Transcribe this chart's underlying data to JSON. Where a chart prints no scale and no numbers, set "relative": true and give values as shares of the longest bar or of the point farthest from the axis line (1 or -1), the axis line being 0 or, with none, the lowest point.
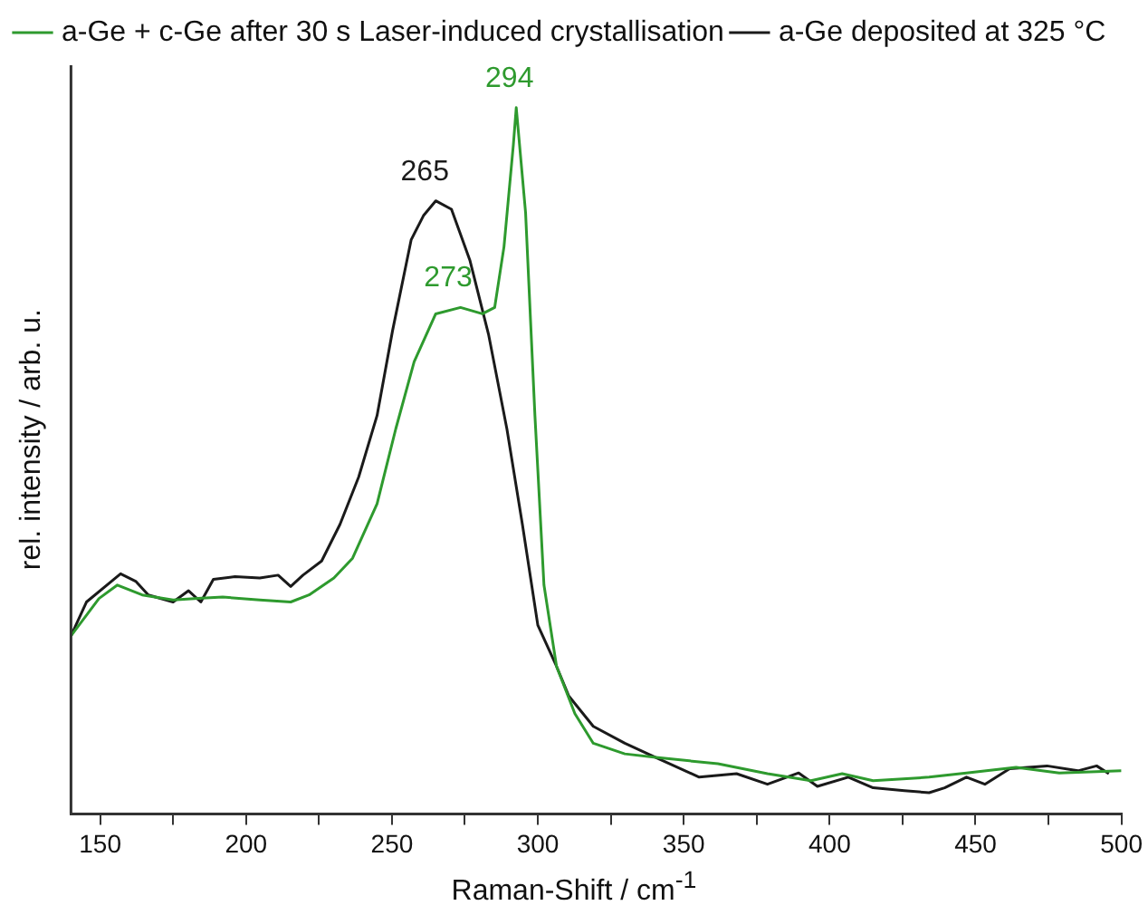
{
  "chart_data": {
    "type": "line",
    "relative": true,
    "xlabel": "Raman-Shift / cm$^{-1}$",
    "ylabel": "rel. intensity / arb. u.",
    "legend": "top left",
    "marker": "none",
    "line_style": "solid",
    "grid": false,
    "xlim": [
      140,
      500
    ],
    "xticks": [
      150,
      {
        "value": 175,
        "label": null
      },
      200,
      {
        "value": 225,
        "label": null
      },
      250,
      {
        "value": 275,
        "label": null
      },
      300,
      {
        "value": 325,
        "label": null
      },
      350,
      {
        "value": 375,
        "label": null
      },
      400,
      {
        "value": 425,
        "label": null
      },
      450,
      {
        "value": 475,
        "label": null
      },
      500
    ],
    "series": [
      {
        "name": "a-Ge + c-Ge after 30 s Laser-induced crystallisation",
        "color": "#2e9a2e",
        "x": [
          140,
          149.6,
          155.9,
          164.4,
          175,
          183.5,
          192,
          204.7,
          215.3,
          221.6,
          230.1,
          236.5,
          244.9,
          251.3,
          257.6,
          265,
          273.5,
          281,
          285.2,
          288.4,
          291.6,
          292.6,
          295.8,
          299,
          302.1,
          306.4,
          312.7,
          319,
          329.8,
          340.4,
          361.7,
          378.7,
          393.6,
          404.3,
          414.9,
          434.1,
          446.9,
          463.9,
          478.7,
          500
        ],
        "values": [
          0.252,
          0.305,
          0.324,
          0.31,
          0.303,
          0.305,
          0.307,
          0.303,
          0.3,
          0.31,
          0.334,
          0.362,
          0.439,
          0.545,
          0.64,
          0.708,
          0.717,
          0.708,
          0.717,
          0.803,
          0.947,
          1.0,
          0.851,
          0.564,
          0.324,
          0.209,
          0.142,
          0.1,
          0.085,
          0.08,
          0.071,
          0.057,
          0.047,
          0.057,
          0.047,
          0.052,
          0.058,
          0.066,
          0.058,
          0.061
        ]
      },
      {
        "name": "a-Ge deposited at 325 °C",
        "color": "#1a1a1a",
        "x": [
          140,
          145.3,
          153.8,
          157,
          162.3,
          166.5,
          175,
          180.3,
          184.5,
          188.8,
          196.2,
          204.7,
          211,
          215.3,
          219.5,
          225.9,
          232.2,
          238.6,
          244.9,
          250.2,
          256.6,
          260.8,
          265,
          270.4,
          276.7,
          283.1,
          289.4,
          294.7,
          300,
          306.4,
          310.6,
          319,
          329.8,
          340.4,
          355.3,
          368.1,
          378.7,
          389.4,
          395.8,
          406.4,
          414.9,
          425.6,
          434.1,
          439.4,
          446.9,
          453.2,
          461.7,
          474.5,
          485.1,
          491.5,
          495.7
        ],
        "values": [
          0.252,
          0.3,
          0.329,
          0.34,
          0.329,
          0.31,
          0.3,
          0.316,
          0.3,
          0.332,
          0.336,
          0.334,
          0.338,
          0.322,
          0.338,
          0.358,
          0.41,
          0.477,
          0.564,
          0.684,
          0.813,
          0.847,
          0.868,
          0.856,
          0.784,
          0.679,
          0.545,
          0.41,
          0.267,
          0.209,
          0.167,
          0.124,
          0.1,
          0.08,
          0.052,
          0.057,
          0.042,
          0.058,
          0.039,
          0.052,
          0.037,
          0.033,
          0.03,
          0.037,
          0.052,
          0.042,
          0.064,
          0.068,
          0.061,
          0.068,
          0.057
        ]
      }
    ],
    "annotations": [
      {
        "text": "265",
        "x": 265,
        "y": 0.868
      },
      {
        "text": "273",
        "x": 273,
        "y": 0.717
      },
      {
        "text": "294",
        "x": 294,
        "y": 1.0
      }
    ]
  }
}
